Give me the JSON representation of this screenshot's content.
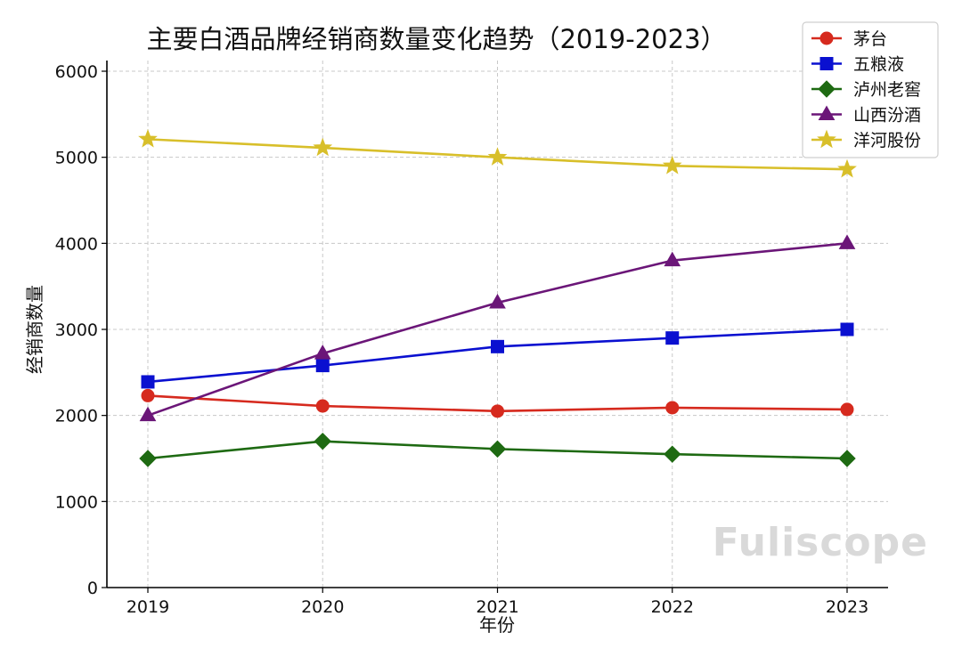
{
  "chart_data": {
    "type": "line",
    "title": "主要白酒品牌经销商数量变化趋势（2019-2023）",
    "xlabel": "年份",
    "ylabel": "经销商数量",
    "x": [
      "2019",
      "2020",
      "2021",
      "2022",
      "2023"
    ],
    "ylim": [
      0,
      6000
    ],
    "yticks": [
      0,
      1000,
      2000,
      3000,
      4000,
      5000,
      6000
    ],
    "grid": true,
    "legend_position": "top-right",
    "series": [
      {
        "name": "茅台",
        "color": "#d62a1e",
        "marker": "circle",
        "values": [
          2230,
          2110,
          2050,
          2090,
          2070
        ]
      },
      {
        "name": "五粮液",
        "color": "#0a10d0",
        "marker": "square",
        "values": [
          2390,
          2580,
          2800,
          2900,
          3000
        ]
      },
      {
        "name": "泸州老窖",
        "color": "#1e6a12",
        "marker": "diamond",
        "values": [
          1500,
          1700,
          1610,
          1550,
          1500
        ]
      },
      {
        "name": "山西汾酒",
        "color": "#6b1678",
        "marker": "triangle",
        "values": [
          2000,
          2720,
          3310,
          3800,
          4000
        ]
      },
      {
        "name": "洋河股份",
        "color": "#d8bf2a",
        "marker": "star",
        "values": [
          5210,
          5110,
          5000,
          4900,
          4860
        ]
      }
    ]
  },
  "watermark": "Fuliscope"
}
